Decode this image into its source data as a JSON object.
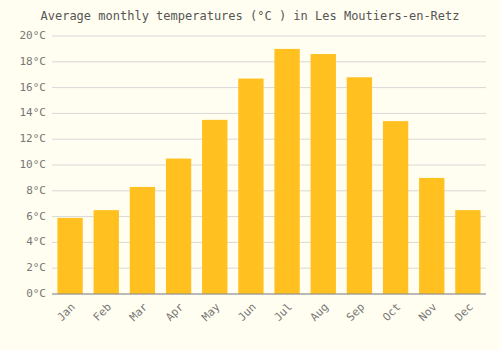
{
  "chart_data": {
    "type": "bar",
    "title": "Average monthly temperatures (°C ) in Les Moutiers-en-Retz",
    "categories": [
      "Jan",
      "Feb",
      "Mar",
      "Apr",
      "May",
      "Jun",
      "Jul",
      "Aug",
      "Sep",
      "Oct",
      "Nov",
      "Dec"
    ],
    "values": [
      5.9,
      6.5,
      8.3,
      10.5,
      13.5,
      16.7,
      19.0,
      18.6,
      16.8,
      13.4,
      9.0,
      6.5
    ],
    "color": "#FFC020",
    "ylim": [
      0,
      20
    ],
    "yticks": [
      {
        "value": 0,
        "label": "0°C"
      },
      {
        "value": 2,
        "label": "2°C"
      },
      {
        "value": 4,
        "label": "4°C"
      },
      {
        "value": 6,
        "label": "6°C"
      },
      {
        "value": 8,
        "label": "8°C"
      },
      {
        "value": 10,
        "label": "10°C"
      },
      {
        "value": 12,
        "label": "12°C"
      },
      {
        "value": 14,
        "label": "14°C"
      },
      {
        "value": 16,
        "label": "16°C"
      },
      {
        "value": 18,
        "label": "18°C"
      },
      {
        "value": 20,
        "label": "20°C"
      }
    ],
    "grid": true
  }
}
